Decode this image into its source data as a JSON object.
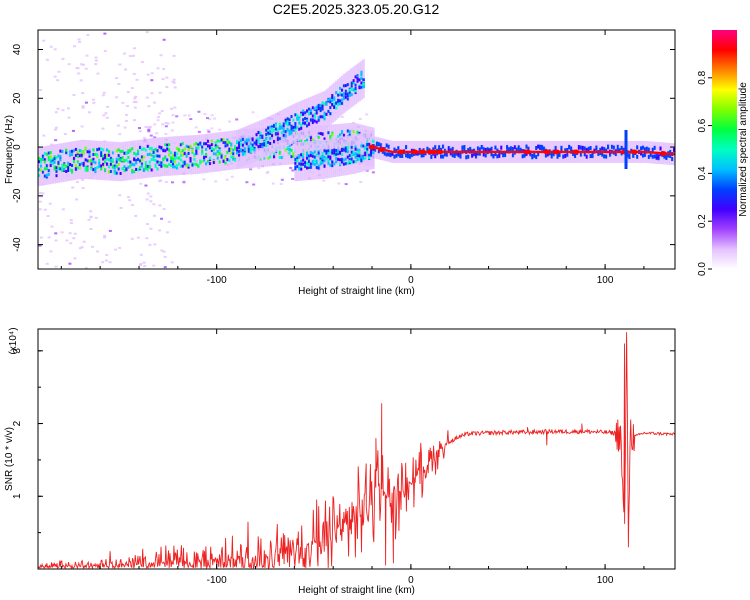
{
  "title": "C2E5.2025.323.05.20.G12",
  "chart_data": [
    {
      "type": "heatmap",
      "xlabel": "Height of straight line (km)",
      "ylabel": "Frequency (Hz)",
      "xlim": [
        -192,
        136
      ],
      "ylim": [
        -50,
        48
      ],
      "xticks": [
        -100,
        0,
        100
      ],
      "yticks": [
        -40,
        -20,
        0,
        20,
        40
      ],
      "colorbar": {
        "label": "Normalized spectral amplitude",
        "range": [
          0,
          1
        ],
        "ticks": [
          0.0,
          0.2,
          0.4,
          0.6,
          0.8
        ],
        "colors": [
          "#ffffff",
          "#e4c0ff",
          "#a040ff",
          "#4000ff",
          "#0040ff",
          "#00c0ff",
          "#00ffc0",
          "#00ff40",
          "#80ff00",
          "#ffff00",
          "#ff8000",
          "#ff0000",
          "#ff0080"
        ]
      },
      "series": [
        {
          "x": [
            -192,
            -170,
            -150,
            -130,
            -110,
            -90,
            -75,
            -60,
            -45,
            -30,
            -20,
            -10,
            0,
            20,
            50,
            80,
            100,
            110,
            120,
            136
          ],
          "values": [
            -8,
            -5,
            -6,
            -4,
            -3,
            -1,
            0,
            1,
            1,
            2,
            0,
            -2,
            -2,
            -2,
            -2,
            -2,
            -2,
            -2,
            -2,
            -3
          ]
        },
        {
          "x": [
            -90,
            -75,
            -60,
            -45,
            -35,
            -25
          ],
          "values": [
            -1,
            4,
            10,
            15,
            22,
            28
          ]
        },
        {
          "x": [
            -60,
            -45,
            -30,
            -20
          ],
          "values": [
            -6,
            -5,
            -3,
            -1
          ]
        }
      ],
      "highlights_x": [
        -20,
        -15,
        -5,
        2,
        6,
        10,
        12,
        15,
        60,
        70,
        75,
        85,
        110,
        115,
        130
      ]
    },
    {
      "type": "line",
      "xlabel": "Height of straight line (km)",
      "ylabel": "SNR (10 * v/v)",
      "y_multiplier": "(x10⁴)",
      "xlim": [
        -192,
        136
      ],
      "ylim": [
        0,
        3.3
      ],
      "xticks": [
        -100,
        0,
        100
      ],
      "yticks": [
        1,
        2,
        3
      ],
      "color": "#ee2222",
      "x": [
        -192,
        -160,
        -130,
        -110,
        -90,
        -70,
        -60,
        -50,
        -40,
        -30,
        -25,
        -20,
        -17,
        -15,
        -12,
        -10,
        -5,
        0,
        5,
        10,
        15,
        20,
        25,
        30,
        40,
        50,
        60,
        70,
        80,
        90,
        100,
        105,
        108,
        110,
        111,
        112,
        113,
        115,
        120,
        130,
        136
      ],
      "values": [
        0.03,
        0.05,
        0.07,
        0.1,
        0.13,
        0.18,
        0.25,
        0.35,
        0.5,
        0.65,
        0.8,
        0.95,
        1.2,
        1.1,
        1.0,
        0.9,
        1.05,
        1.2,
        1.35,
        1.5,
        1.65,
        1.75,
        1.82,
        1.86,
        1.87,
        1.88,
        1.88,
        1.89,
        1.89,
        1.89,
        1.88,
        1.87,
        1.85,
        0.4,
        3.3,
        0.6,
        1.9,
        1.82,
        1.87,
        1.86,
        1.85
      ],
      "spikes": [
        {
          "x": -15,
          "value": 2.28
        },
        {
          "x": -13,
          "value": 0.05
        },
        {
          "x": -18,
          "value": 1.8
        },
        {
          "x": -23,
          "value": 1.45
        },
        {
          "x": -9,
          "value": 0.08
        },
        {
          "x": 110,
          "value": 3.1
        },
        {
          "x": 112,
          "value": 0.3
        },
        {
          "x": 88,
          "value": 2.0
        },
        {
          "x": 70,
          "value": 1.7
        },
        {
          "x": 60,
          "value": 1.95
        }
      ]
    }
  ]
}
